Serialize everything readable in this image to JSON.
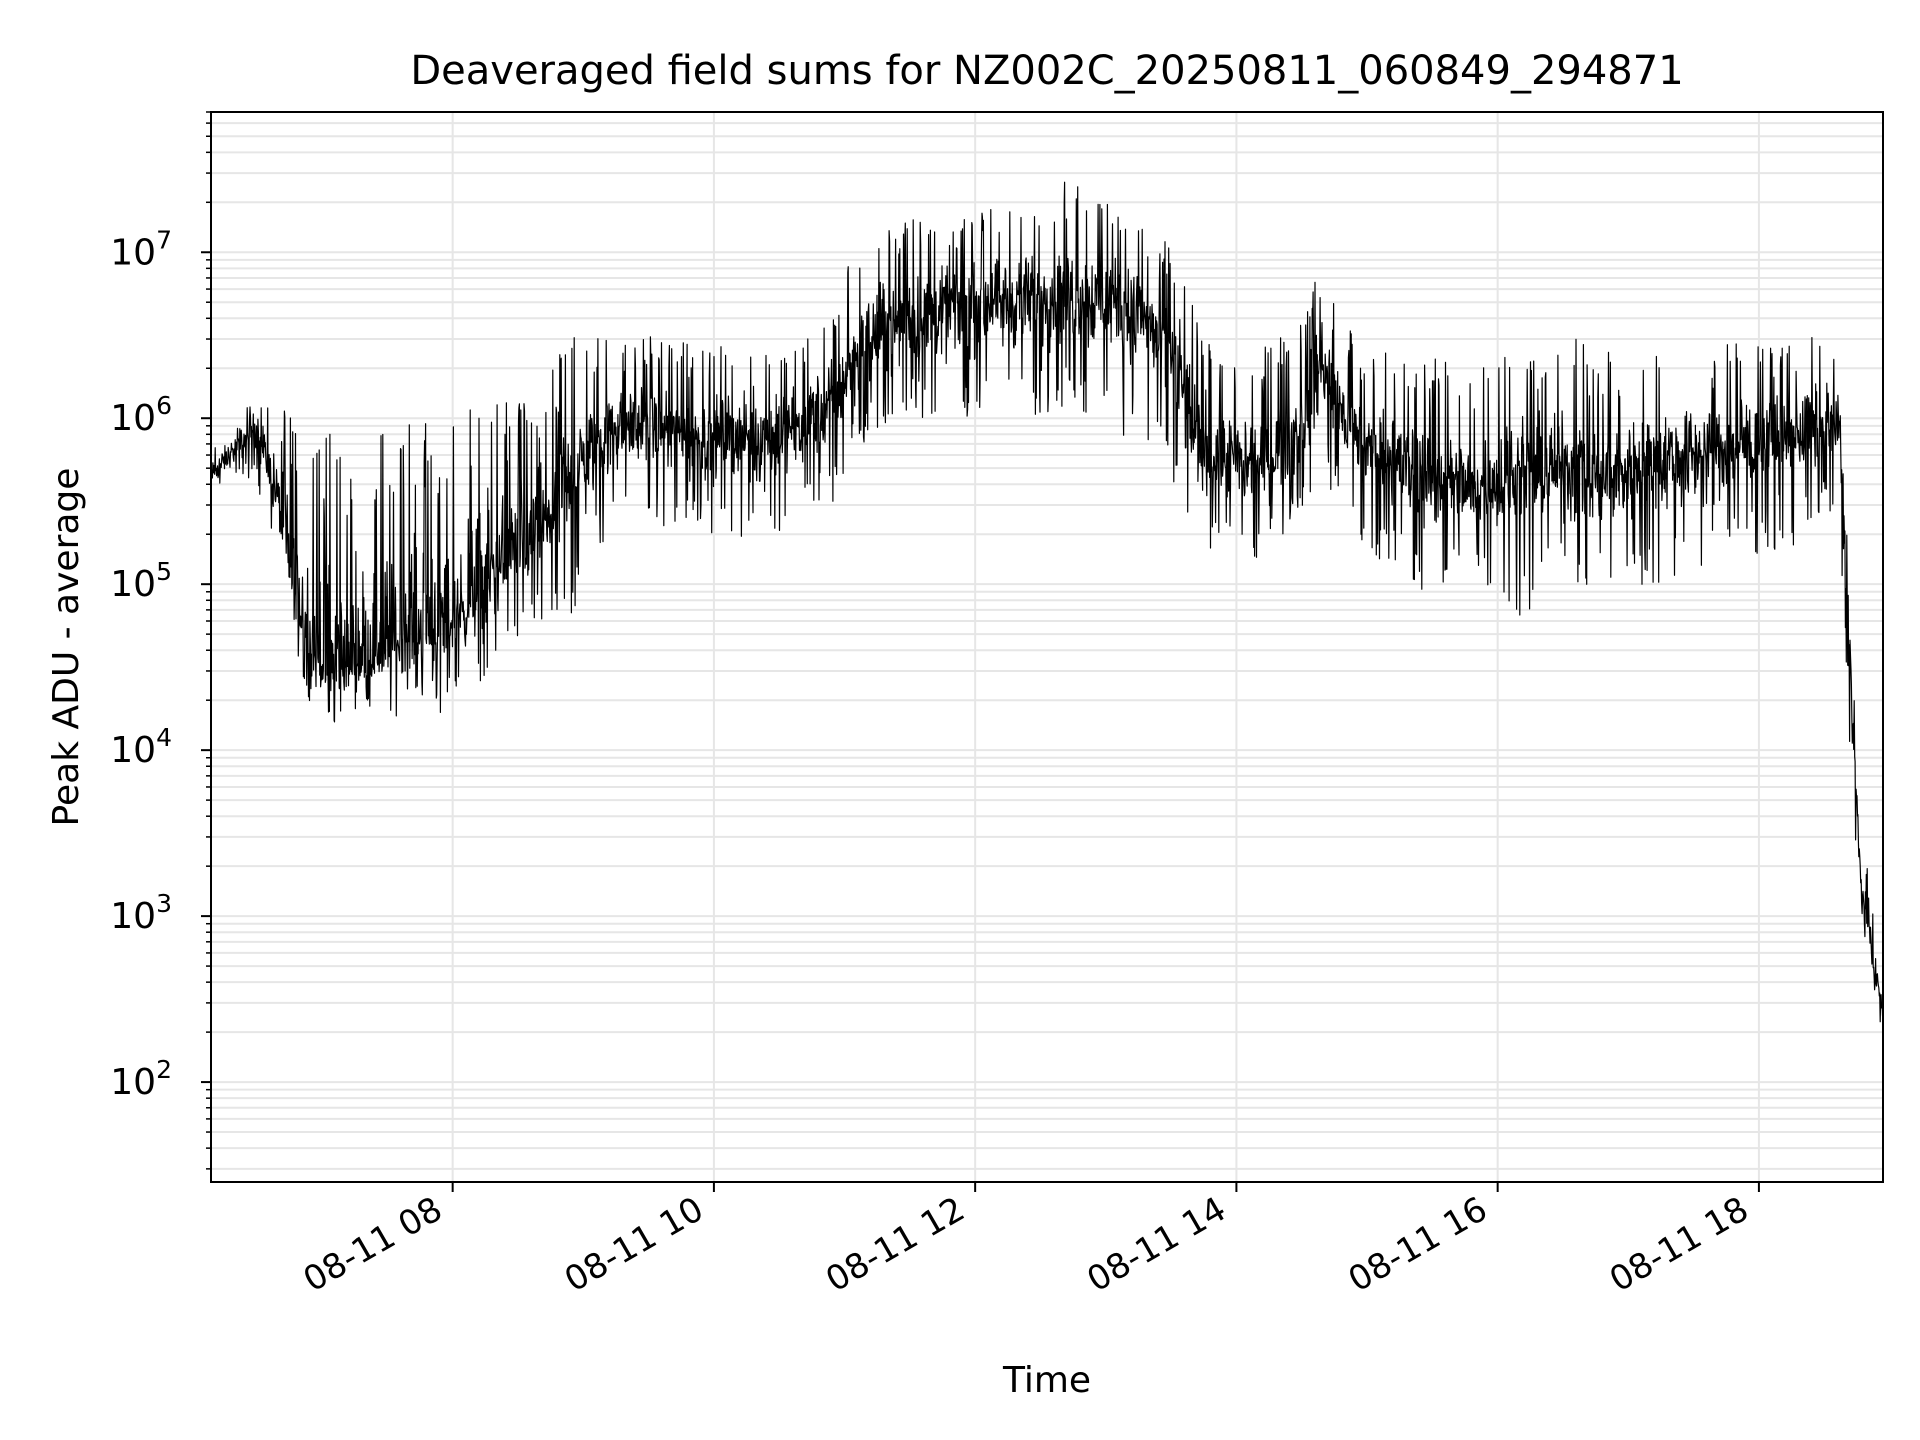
{
  "chart_data": {
    "type": "line",
    "title": "Deaveraged field sums for NZ002C_20250811_060849_294871",
    "xlabel": "Time",
    "ylabel": "Peak ADU - average",
    "x_tick_labels": [
      "08-11 08",
      "08-11 10",
      "08-11 12",
      "08-11 14",
      "08-11 16",
      "08-11 18"
    ],
    "x_ticks_hours": [
      8,
      10,
      12,
      14,
      16,
      18
    ],
    "y_tick_exponents": [
      2,
      3,
      4,
      5,
      6,
      7
    ],
    "y_tick_base": "10",
    "yscale": "log",
    "ylim": [
      25,
      70000000
    ],
    "xlim_hours": [
      6.15,
      18.95
    ],
    "grid": true,
    "line_color": "#000000",
    "grid_color": "#e6e6e6",
    "series": [
      {
        "x_hours": [
          6.15,
          6.35,
          6.5,
          6.65,
          6.8,
          6.95,
          7.1,
          7.3,
          7.5,
          7.7,
          7.9,
          8.1,
          8.3,
          8.5,
          8.7,
          8.9,
          9.1,
          9.3,
          9.5,
          9.7,
          9.9,
          10.1,
          10.3,
          10.5,
          10.7,
          10.9,
          11.1,
          11.3,
          11.5,
          11.7,
          11.9,
          12.1,
          12.3,
          12.5,
          12.7,
          12.9,
          13.1,
          13.3,
          13.5,
          13.7,
          13.9,
          14.1,
          14.3,
          14.5,
          14.65,
          14.8,
          15.0,
          15.2,
          15.4,
          15.6,
          15.8,
          16.0,
          16.2,
          16.4,
          16.6,
          16.8,
          17.0,
          17.2,
          17.4,
          17.6,
          17.8,
          18.0,
          18.2,
          18.4,
          18.55,
          18.62,
          18.68,
          18.73,
          18.78,
          18.83,
          18.88,
          18.95
        ],
        "y_median": [
          450000,
          650000,
          900000,
          350000,
          80000,
          35000,
          30000,
          35000,
          40000,
          50000,
          55000,
          70000,
          110000,
          150000,
          220000,
          380000,
          700000,
          850000,
          900000,
          850000,
          750000,
          800000,
          750000,
          800000,
          950000,
          1200000,
          2500000,
          3500000,
          4000000,
          4200000,
          4500000,
          5000000,
          5200000,
          5500000,
          5800000,
          5500000,
          5000000,
          4000000,
          2500000,
          700000,
          550000,
          500000,
          600000,
          900000,
          2200000,
          1100000,
          650000,
          550000,
          500000,
          400000,
          350000,
          400000,
          450000,
          500000,
          500000,
          450000,
          500000,
          550000,
          600000,
          650000,
          650000,
          700000,
          750000,
          850000,
          900000,
          800000,
          80000,
          10000,
          1500,
          900,
          500,
          250
        ],
        "y_min": [
          350000,
          450000,
          400000,
          150000,
          35000,
          15000,
          12000,
          16000,
          15000,
          18000,
          16000,
          22000,
          30000,
          40000,
          60000,
          60000,
          150000,
          300000,
          250000,
          200000,
          200000,
          200000,
          150000,
          200000,
          250000,
          300000,
          600000,
          900000,
          1000000,
          900000,
          800000,
          1000000,
          900000,
          1000000,
          1100000,
          900000,
          800000,
          700000,
          300000,
          180000,
          150000,
          130000,
          150000,
          250000,
          500000,
          250000,
          150000,
          130000,
          70000,
          100000,
          90000,
          90000,
          60000,
          100000,
          90000,
          80000,
          90000,
          100000,
          110000,
          130000,
          150000,
          150000,
          160000,
          200000,
          250000,
          200000,
          20000,
          2000,
          800,
          600,
          300,
          200
        ],
        "y_max": [
          650000,
          1200000,
          1500000,
          1200000,
          1000000,
          950000,
          900000,
          950000,
          1000000,
          1000000,
          1100000,
          1200000,
          1300000,
          1500000,
          1800000,
          3000000,
          3500000,
          3000000,
          3200000,
          3000000,
          2700000,
          2800000,
          2500000,
          3000000,
          3500000,
          5000000,
          12000000,
          14000000,
          16000000,
          17000000,
          16000000,
          18000000,
          20000000,
          20000000,
          30000000,
          22000000,
          18000000,
          15000000,
          12000000,
          5000000,
          3000000,
          2500000,
          3000000,
          4000000,
          10000000,
          4000000,
          2500000,
          2500000,
          2000000,
          2500000,
          2000000,
          2500000,
          2500000,
          2500000,
          3000000,
          2500000,
          2500000,
          2500000,
          2800000,
          2500000,
          3000000,
          3000000,
          3000000,
          3200000,
          4500000,
          3000000,
          200000,
          20000,
          3000,
          2000,
          1000,
          400
        ]
      }
    ]
  }
}
